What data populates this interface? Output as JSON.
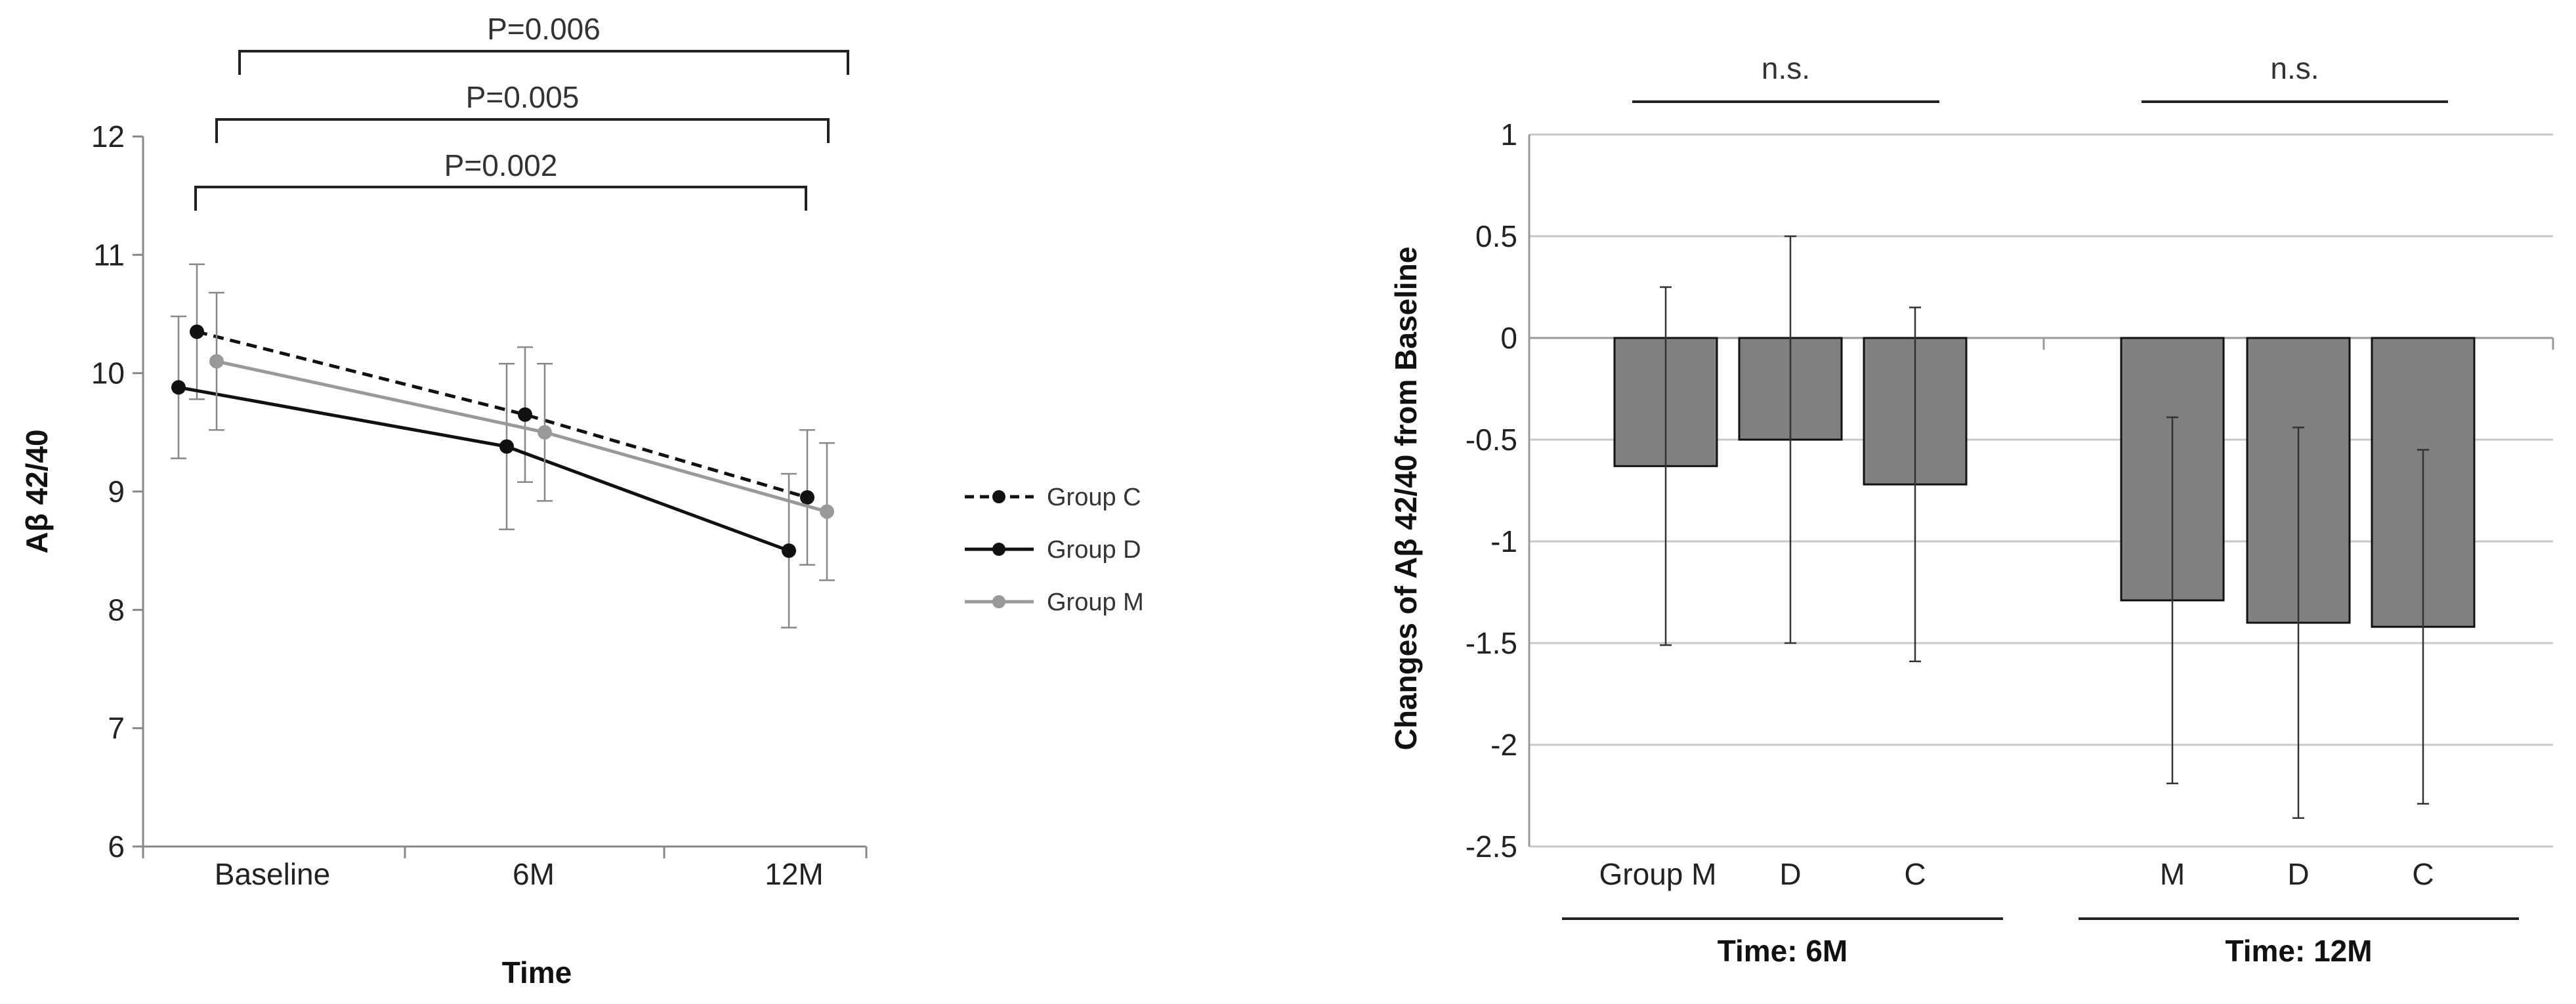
{
  "chart_data": [
    {
      "type": "line",
      "title": "",
      "xlabel": "Time",
      "ylabel": "Aβ 42/40",
      "ylim": [
        6,
        12
      ],
      "yticks": [
        "6",
        "7",
        "8",
        "9",
        "10",
        "11",
        "12"
      ],
      "categories": [
        "Baseline",
        "6M",
        "12M"
      ],
      "series": [
        {
          "name": "Group C",
          "style": "dashed",
          "color": "#111111",
          "values": [
            10.35,
            9.65,
            8.95
          ],
          "err": [
            0.57,
            0.57,
            0.57
          ]
        },
        {
          "name": "Group D",
          "style": "solid",
          "color": "#111111",
          "values": [
            9.88,
            9.38,
            8.5
          ],
          "err": [
            0.6,
            0.7,
            0.65
          ]
        },
        {
          "name": "Group M",
          "style": "solid",
          "color": "#999999",
          "values": [
            10.1,
            9.5,
            8.83
          ],
          "err": [
            0.58,
            0.58,
            0.58
          ]
        }
      ],
      "annotations": [
        {
          "text": "P=0.002",
          "from": "Baseline",
          "to": "12M",
          "series": "Group D"
        },
        {
          "text": "P=0.005",
          "from": "Baseline",
          "to": "12M",
          "series": "Group C"
        },
        {
          "text": "P=0.006",
          "from": "Baseline",
          "to": "12M",
          "series": "Group M"
        }
      ]
    },
    {
      "type": "bar",
      "title": "",
      "xlabel": "",
      "ylabel": "Changes of Aβ 42/40 from Baseline",
      "ylim": [
        -2.5,
        1
      ],
      "yticks": [
        "-2.5",
        "-2",
        "-1.5",
        "-1",
        "-0.5",
        "0",
        "0.5",
        "1"
      ],
      "grid": true,
      "groups": [
        {
          "label": "Time: 6M",
          "significance": "n.s.",
          "categories": [
            "Group M",
            "D",
            "C"
          ],
          "values": [
            -0.63,
            -0.5,
            -0.72
          ],
          "err": [
            0.88,
            1.0,
            0.87
          ]
        },
        {
          "label": "Time: 12M",
          "significance": "n.s.",
          "categories": [
            "M",
            "D",
            "C"
          ],
          "values": [
            -1.29,
            -1.4,
            -1.42
          ],
          "err": [
            0.9,
            0.96,
            0.87
          ]
        }
      ],
      "bar_color": "#808080"
    }
  ]
}
